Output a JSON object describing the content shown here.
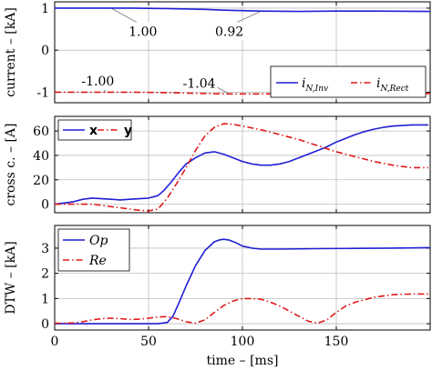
{
  "colors": {
    "blue": "#1f1fd6",
    "red": "#e01818",
    "frame": "#000000",
    "grid": "#bdbdbd"
  },
  "shared_xlabel": "time – [ms]",
  "chart_data": [
    {
      "type": "line",
      "ylabel": "current – [kA]",
      "ylim": [
        -1.25,
        1.15
      ],
      "xlim": [
        0,
        200
      ],
      "yticks": [
        "-1",
        "0",
        "1"
      ],
      "ytick_values": [
        -1,
        0,
        1
      ],
      "grid": true,
      "legend_position": "bottom-right",
      "series": [
        {
          "name_main": "i",
          "name_sub": "N,Inv",
          "style": "solid",
          "color": "blue",
          "x": [
            0,
            20,
            40,
            60,
            80,
            90,
            100,
            110,
            130,
            150,
            170,
            200
          ],
          "y": [
            1.0,
            1.0,
            1.0,
            0.99,
            0.97,
            0.95,
            0.94,
            0.93,
            0.92,
            0.93,
            0.93,
            0.92
          ]
        },
        {
          "name_main": "i",
          "name_sub": "N,Rect",
          "style": "dashdot",
          "color": "red",
          "x": [
            0,
            20,
            40,
            60,
            70,
            80,
            90,
            100,
            120,
            140,
            160,
            180,
            200
          ],
          "y": [
            -1.0,
            -1.0,
            -1.0,
            -1.01,
            -1.02,
            -1.03,
            -1.04,
            -1.04,
            -1.04,
            -1.03,
            -1.03,
            -1.03,
            -1.03
          ]
        }
      ],
      "annotations": [
        {
          "text": "1.00",
          "x_from": 30,
          "y_from": 1.0,
          "x_to": 47,
          "y_to": 0.58
        },
        {
          "text": "0.92",
          "x_from": 110,
          "y_from": 0.93,
          "x_to": 93,
          "y_to": 0.58
        },
        {
          "text": "-1.00",
          "x_from": 27,
          "y_from": -1.0,
          "x_to": 23,
          "y_to": -0.6
        },
        {
          "text": "-1.04",
          "x_from": 93,
          "y_from": -1.04,
          "x_to": 77,
          "y_to": -0.65
        }
      ]
    },
    {
      "type": "line",
      "ylabel": "cross c. – [A]",
      "ylim": [
        -7,
        72
      ],
      "xlim": [
        0,
        200
      ],
      "yticks": [
        "0",
        "20",
        "40",
        "60"
      ],
      "ytick_values": [
        0,
        20,
        40,
        60
      ],
      "grid": true,
      "legend_position": "top-left",
      "series": [
        {
          "name": "x",
          "style": "solid",
          "color": "blue",
          "x": [
            0,
            5,
            10,
            15,
            20,
            25,
            30,
            35,
            40,
            45,
            50,
            55,
            58,
            62,
            66,
            70,
            75,
            80,
            85,
            90,
            95,
            100,
            105,
            110,
            115,
            120,
            125,
            130,
            135,
            140,
            145,
            150,
            155,
            160,
            165,
            170,
            175,
            180,
            185,
            190,
            195,
            199
          ],
          "y": [
            0,
            1,
            2,
            4,
            5,
            4.5,
            4,
            3.5,
            4,
            4.5,
            5,
            7,
            11,
            18,
            26,
            33,
            38,
            42,
            43,
            41,
            38,
            35,
            33,
            32,
            32,
            33,
            35,
            38,
            41,
            44,
            47,
            51,
            54,
            57,
            59.5,
            61.5,
            63,
            64,
            64.5,
            65,
            65,
            65
          ]
        },
        {
          "name": "y",
          "style": "dashdot",
          "color": "red",
          "x": [
            0,
            5,
            10,
            15,
            20,
            25,
            30,
            35,
            40,
            45,
            50,
            55,
            60,
            65,
            70,
            75,
            80,
            85,
            90,
            95,
            100,
            110,
            120,
            130,
            140,
            150,
            160,
            170,
            180,
            190,
            199
          ],
          "y": [
            0,
            0,
            0,
            0,
            0,
            -1,
            -2,
            -3,
            -4,
            -5,
            -5.5,
            -4,
            5,
            17,
            30,
            44,
            56,
            63,
            66,
            65.5,
            64,
            61,
            57,
            53,
            48,
            43,
            39,
            35,
            32,
            30,
            30
          ]
        }
      ]
    },
    {
      "type": "line",
      "ylabel": "DTW – [kA]",
      "ylim": [
        -0.25,
        3.9
      ],
      "xlim": [
        0,
        200
      ],
      "yticks": [
        "0",
        "1",
        "2",
        "3"
      ],
      "ytick_values": [
        0,
        1,
        2,
        3
      ],
      "xticks": [
        "0",
        "50",
        "100",
        "150"
      ],
      "xtick_values": [
        0,
        50,
        100,
        150
      ],
      "grid": true,
      "legend_position": "top-left",
      "series": [
        {
          "name": "Op",
          "style": "solid",
          "color": "blue",
          "x": [
            0,
            20,
            40,
            50,
            55,
            60,
            63,
            66,
            70,
            75,
            80,
            85,
            88,
            90,
            93,
            97,
            100,
            105,
            110,
            120,
            140,
            160,
            180,
            200
          ],
          "y": [
            0,
            0,
            0,
            0,
            0,
            0.05,
            0.3,
            0.8,
            1.5,
            2.3,
            2.9,
            3.25,
            3.33,
            3.35,
            3.32,
            3.2,
            3.08,
            3.0,
            2.96,
            2.96,
            2.98,
            2.99,
            3.0,
            3.02
          ]
        },
        {
          "name": "Re",
          "style": "dashdot",
          "color": "red",
          "x": [
            0,
            5,
            10,
            15,
            20,
            25,
            30,
            35,
            40,
            45,
            50,
            55,
            60,
            65,
            70,
            75,
            80,
            85,
            90,
            95,
            100,
            105,
            110,
            115,
            120,
            125,
            130,
            135,
            140,
            145,
            150,
            155,
            160,
            165,
            170,
            175,
            180,
            185,
            190,
            195,
            199
          ],
          "y": [
            0.02,
            0.02,
            0.03,
            0.08,
            0.15,
            0.2,
            0.22,
            0.2,
            0.17,
            0.18,
            0.22,
            0.27,
            0.28,
            0.2,
            0.08,
            0.02,
            0.15,
            0.45,
            0.72,
            0.9,
            1.0,
            1.0,
            0.97,
            0.85,
            0.7,
            0.5,
            0.3,
            0.1,
            0.02,
            0.15,
            0.45,
            0.7,
            0.85,
            0.95,
            1.05,
            1.1,
            1.15,
            1.17,
            1.18,
            1.18,
            1.18
          ]
        }
      ]
    }
  ]
}
